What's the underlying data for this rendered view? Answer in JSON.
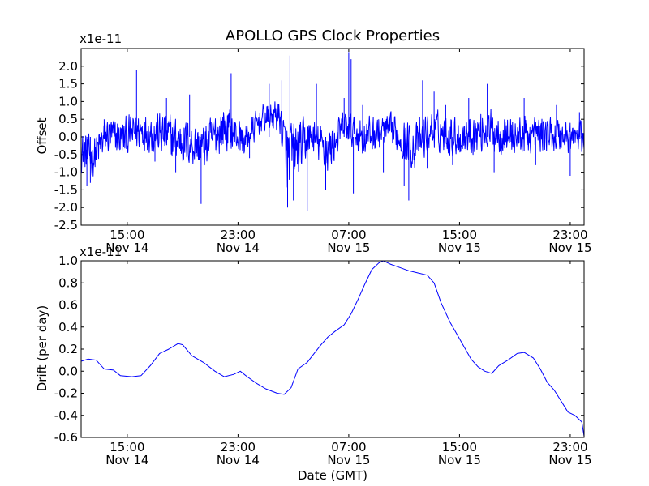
{
  "title": "APOLLO GPS Clock Properties",
  "chart_data": [
    {
      "type": "line",
      "ylabel": "Offset",
      "exponent_label": "x1e-11",
      "xlabel": "",
      "xlim": [
        "2011-11-14 11:40",
        "2011-11-16 00:00"
      ],
      "ylim": [
        -2.5,
        2.5
      ],
      "yticks": [
        {
          "value": -2.5,
          "label": "-2.5"
        },
        {
          "value": -2.0,
          "label": "-2.0"
        },
        {
          "value": -1.5,
          "label": "-1.5"
        },
        {
          "value": -1.0,
          "label": "-1.0"
        },
        {
          "value": -0.5,
          "label": "-0.5"
        },
        {
          "value": 0.0,
          "label": "0.0"
        },
        {
          "value": 0.5,
          "label": "0.5"
        },
        {
          "value": 1.0,
          "label": "1.0"
        },
        {
          "value": 1.5,
          "label": "1.5"
        },
        {
          "value": 2.0,
          "label": "2.0"
        }
      ],
      "xticks": [
        {
          "time": "2011-11-14 15:00",
          "time_label": "15:00",
          "date_label": "Nov 14"
        },
        {
          "time": "2011-11-14 23:00",
          "time_label": "23:00",
          "date_label": "Nov 14"
        },
        {
          "time": "2011-11-15 07:00",
          "time_label": "07:00",
          "date_label": "Nov 15"
        },
        {
          "time": "2011-11-15 15:00",
          "time_label": "15:00",
          "date_label": "Nov 15"
        },
        {
          "time": "2011-11-15 23:00",
          "time_label": "23:00",
          "date_label": "Nov 15"
        }
      ],
      "grid": false,
      "series": [
        {
          "color": "#0000ff",
          "envelope": [
            {
              "x": "2011-11-14 11:40",
              "base": -0.4,
              "amp": 0.5
            },
            {
              "x": "2011-11-14 12:30",
              "base": -0.6,
              "amp": 0.5
            },
            {
              "x": "2011-11-14 13:30",
              "base": 0.05,
              "amp": 0.5
            },
            {
              "x": "2011-11-14 14:40",
              "base": -0.05,
              "amp": 0.5
            },
            {
              "x": "2011-11-14 16:00",
              "base": 0.2,
              "amp": 0.5
            },
            {
              "x": "2011-11-14 18:00",
              "base": 0.0,
              "amp": 0.6
            },
            {
              "x": "2011-11-14 20:30",
              "base": -0.3,
              "amp": 0.55
            },
            {
              "x": "2011-11-14 22:00",
              "base": 0.3,
              "amp": 0.6
            },
            {
              "x": "2011-11-14 23:30",
              "base": -0.1,
              "amp": 0.4
            },
            {
              "x": "2011-11-15 00:40",
              "base": 0.5,
              "amp": 0.35
            },
            {
              "x": "2011-11-15 02:00",
              "base": 0.6,
              "amp": 0.4
            },
            {
              "x": "2011-11-15 02:30",
              "base": -0.6,
              "amp": 0.9
            },
            {
              "x": "2011-11-15 03:30",
              "base": -0.3,
              "amp": 0.7
            },
            {
              "x": "2011-11-15 04:20",
              "base": 0.0,
              "amp": 0.45
            },
            {
              "x": "2011-11-15 05:30",
              "base": -0.4,
              "amp": 0.6
            },
            {
              "x": "2011-11-15 06:40",
              "base": 0.3,
              "amp": 0.4
            },
            {
              "x": "2011-11-15 08:00",
              "base": 0.0,
              "amp": 0.5
            },
            {
              "x": "2011-11-15 10:00",
              "base": 0.2,
              "amp": 0.4
            },
            {
              "x": "2011-11-15 11:40",
              "base": -0.3,
              "amp": 0.6
            },
            {
              "x": "2011-11-15 13:00",
              "base": 0.2,
              "amp": 0.5
            },
            {
              "x": "2011-11-15 15:00",
              "base": 0.0,
              "amp": 0.5
            },
            {
              "x": "2011-11-15 17:00",
              "base": 0.2,
              "amp": 0.55
            },
            {
              "x": "2011-11-15 19:00",
              "base": 0.0,
              "amp": 0.5
            },
            {
              "x": "2011-11-15 21:00",
              "base": 0.1,
              "amp": 0.45
            },
            {
              "x": "2011-11-15 23:00",
              "base": 0.0,
              "amp": 0.45
            },
            {
              "x": "2011-11-16 00:00",
              "base": 0.0,
              "amp": 0.45
            }
          ],
          "spikes": [
            {
              "x": "2011-11-14 12:05",
              "y": -1.4
            },
            {
              "x": "2011-11-14 12:20",
              "y": -1.3
            },
            {
              "x": "2011-11-14 13:20",
              "y": 0.5
            },
            {
              "x": "2011-11-14 15:40",
              "y": 1.9
            },
            {
              "x": "2011-11-14 17:00",
              "y": -0.7
            },
            {
              "x": "2011-11-14 17:50",
              "y": 1.1
            },
            {
              "x": "2011-11-14 18:30",
              "y": -1.0
            },
            {
              "x": "2011-11-14 19:30",
              "y": 1.2
            },
            {
              "x": "2011-11-14 20:20",
              "y": -1.9
            },
            {
              "x": "2011-11-14 22:30",
              "y": 1.8
            },
            {
              "x": "2011-11-14 23:50",
              "y": -0.6
            },
            {
              "x": "2011-11-15 01:15",
              "y": 1.5
            },
            {
              "x": "2011-11-15 02:10",
              "y": 1.6
            },
            {
              "x": "2011-11-15 02:45",
              "y": 2.3
            },
            {
              "x": "2011-11-15 02:35",
              "y": -2.0
            },
            {
              "x": "2011-11-15 03:00",
              "y": -1.8
            },
            {
              "x": "2011-11-15 04:00",
              "y": -2.1
            },
            {
              "x": "2011-11-15 04:40",
              "y": 1.5
            },
            {
              "x": "2011-11-15 05:20",
              "y": -1.5
            },
            {
              "x": "2011-11-15 06:40",
              "y": 1.1
            },
            {
              "x": "2011-11-15 07:00",
              "y": 2.4
            },
            {
              "x": "2011-11-15 07:10",
              "y": 2.2
            },
            {
              "x": "2011-11-15 07:20",
              "y": -1.6
            },
            {
              "x": "2011-11-15 08:00",
              "y": 0.9
            },
            {
              "x": "2011-11-15 09:30",
              "y": -1.0
            },
            {
              "x": "2011-11-15 11:00",
              "y": -1.4
            },
            {
              "x": "2011-11-15 11:20",
              "y": -1.8
            },
            {
              "x": "2011-11-15 12:20",
              "y": 1.6
            },
            {
              "x": "2011-11-15 12:40",
              "y": -0.9
            },
            {
              "x": "2011-11-15 13:10",
              "y": 1.3
            },
            {
              "x": "2011-11-15 14:00",
              "y": 0.9
            },
            {
              "x": "2011-11-15 14:30",
              "y": -0.8
            },
            {
              "x": "2011-11-15 15:40",
              "y": 1.1
            },
            {
              "x": "2011-11-15 17:00",
              "y": 1.5
            },
            {
              "x": "2011-11-15 17:30",
              "y": -1.0
            },
            {
              "x": "2011-11-15 19:40",
              "y": 1.1
            },
            {
              "x": "2011-11-15 20:30",
              "y": -0.8
            },
            {
              "x": "2011-11-15 22:00",
              "y": 0.9
            },
            {
              "x": "2011-11-15 23:00",
              "y": -1.1
            },
            {
              "x": "2011-11-15 23:40",
              "y": 0.7
            }
          ]
        }
      ]
    },
    {
      "type": "line",
      "ylabel": "Drift (per day)",
      "exponent_label": "x1e-11",
      "xlabel": "Date (GMT)",
      "xlim": [
        "2011-11-14 11:40",
        "2011-11-16 00:00"
      ],
      "ylim": [
        -0.6,
        1.0
      ],
      "yticks": [
        {
          "value": -0.6,
          "label": "-0.6"
        },
        {
          "value": -0.4,
          "label": "-0.4"
        },
        {
          "value": -0.2,
          "label": "-0.2"
        },
        {
          "value": 0.0,
          "label": "0.0"
        },
        {
          "value": 0.2,
          "label": "0.2"
        },
        {
          "value": 0.4,
          "label": "0.4"
        },
        {
          "value": 0.6,
          "label": "0.6"
        },
        {
          "value": 0.8,
          "label": "0.8"
        },
        {
          "value": 1.0,
          "label": "1.0"
        }
      ],
      "xticks": [
        {
          "time": "2011-11-14 15:00",
          "time_label": "15:00",
          "date_label": "Nov 14"
        },
        {
          "time": "2011-11-14 23:00",
          "time_label": "23:00",
          "date_label": "Nov 14"
        },
        {
          "time": "2011-11-15 07:00",
          "time_label": "07:00",
          "date_label": "Nov 15"
        },
        {
          "time": "2011-11-15 15:00",
          "time_label": "15:00",
          "date_label": "Nov 15"
        },
        {
          "time": "2011-11-15 23:00",
          "time_label": "23:00",
          "date_label": "Nov 15"
        }
      ],
      "grid": false,
      "series": [
        {
          "color": "#0000ff",
          "points": [
            {
              "x": "2011-11-14 11:40",
              "y": 0.09
            },
            {
              "x": "2011-11-14 12:10",
              "y": 0.11
            },
            {
              "x": "2011-11-14 12:45",
              "y": 0.1
            },
            {
              "x": "2011-11-14 13:20",
              "y": 0.02
            },
            {
              "x": "2011-11-14 14:00",
              "y": 0.01
            },
            {
              "x": "2011-11-14 14:30",
              "y": -0.04
            },
            {
              "x": "2011-11-14 15:20",
              "y": -0.05
            },
            {
              "x": "2011-11-14 16:00",
              "y": -0.04
            },
            {
              "x": "2011-11-14 16:40",
              "y": 0.05
            },
            {
              "x": "2011-11-14 17:20",
              "y": 0.16
            },
            {
              "x": "2011-11-14 18:00",
              "y": 0.2
            },
            {
              "x": "2011-11-14 18:40",
              "y": 0.25
            },
            {
              "x": "2011-11-14 19:00",
              "y": 0.24
            },
            {
              "x": "2011-11-14 19:40",
              "y": 0.14
            },
            {
              "x": "2011-11-14 20:30",
              "y": 0.08
            },
            {
              "x": "2011-11-14 21:20",
              "y": 0.0
            },
            {
              "x": "2011-11-14 22:00",
              "y": -0.05
            },
            {
              "x": "2011-11-14 22:40",
              "y": -0.03
            },
            {
              "x": "2011-11-14 23:10",
              "y": 0.0
            },
            {
              "x": "2011-11-14 23:40",
              "y": -0.05
            },
            {
              "x": "2011-11-15 00:20",
              "y": -0.11
            },
            {
              "x": "2011-11-15 01:00",
              "y": -0.16
            },
            {
              "x": "2011-11-15 01:50",
              "y": -0.2
            },
            {
              "x": "2011-11-15 02:20",
              "y": -0.21
            },
            {
              "x": "2011-11-15 02:50",
              "y": -0.15
            },
            {
              "x": "2011-11-15 03:20",
              "y": 0.02
            },
            {
              "x": "2011-11-15 04:00",
              "y": 0.08
            },
            {
              "x": "2011-11-15 04:30",
              "y": 0.16
            },
            {
              "x": "2011-11-15 05:00",
              "y": 0.24
            },
            {
              "x": "2011-11-15 05:30",
              "y": 0.31
            },
            {
              "x": "2011-11-15 06:00",
              "y": 0.36
            },
            {
              "x": "2011-11-15 06:40",
              "y": 0.42
            },
            {
              "x": "2011-11-15 07:10",
              "y": 0.52
            },
            {
              "x": "2011-11-15 07:40",
              "y": 0.65
            },
            {
              "x": "2011-11-15 08:10",
              "y": 0.79
            },
            {
              "x": "2011-11-15 08:40",
              "y": 0.92
            },
            {
              "x": "2011-11-15 09:10",
              "y": 0.98
            },
            {
              "x": "2011-11-15 09:30",
              "y": 1.0
            },
            {
              "x": "2011-11-15 10:00",
              "y": 0.97
            },
            {
              "x": "2011-11-15 10:40",
              "y": 0.94
            },
            {
              "x": "2011-11-15 11:20",
              "y": 0.91
            },
            {
              "x": "2011-11-15 12:00",
              "y": 0.89
            },
            {
              "x": "2011-11-15 12:40",
              "y": 0.87
            },
            {
              "x": "2011-11-15 13:10",
              "y": 0.8
            },
            {
              "x": "2011-11-15 13:40",
              "y": 0.62
            },
            {
              "x": "2011-11-15 14:20",
              "y": 0.44
            },
            {
              "x": "2011-11-15 14:50",
              "y": 0.33
            },
            {
              "x": "2011-11-15 15:20",
              "y": 0.22
            },
            {
              "x": "2011-11-15 15:50",
              "y": 0.11
            },
            {
              "x": "2011-11-15 16:20",
              "y": 0.04
            },
            {
              "x": "2011-11-15 16:50",
              "y": 0.0
            },
            {
              "x": "2011-11-15 17:20",
              "y": -0.02
            },
            {
              "x": "2011-11-15 17:50",
              "y": 0.05
            },
            {
              "x": "2011-11-15 18:30",
              "y": 0.1
            },
            {
              "x": "2011-11-15 19:10",
              "y": 0.16
            },
            {
              "x": "2011-11-15 19:40",
              "y": 0.17
            },
            {
              "x": "2011-11-15 20:20",
              "y": 0.12
            },
            {
              "x": "2011-11-15 20:50",
              "y": 0.02
            },
            {
              "x": "2011-11-15 21:20",
              "y": -0.1
            },
            {
              "x": "2011-11-15 21:50",
              "y": -0.17
            },
            {
              "x": "2011-11-15 22:20",
              "y": -0.27
            },
            {
              "x": "2011-11-15 22:50",
              "y": -0.37
            },
            {
              "x": "2011-11-15 23:20",
              "y": -0.4
            },
            {
              "x": "2011-11-15 23:50",
              "y": -0.46
            },
            {
              "x": "2011-11-16 00:00",
              "y": -0.59
            }
          ]
        }
      ]
    }
  ]
}
